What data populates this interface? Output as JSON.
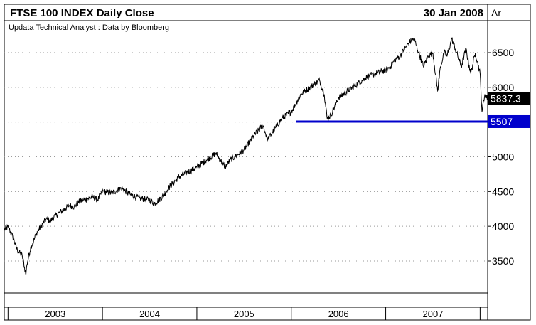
{
  "header": {
    "title": "FTSE 100 INDEX Daily Close",
    "date": "30 Jan 2008",
    "corner_label": "Ar",
    "source": "Updata Technical Analyst : Data by Bloomberg"
  },
  "colors": {
    "line": "#000000",
    "support": "#0000cc",
    "last_tag_bg": "#000000",
    "support_tag_bg": "#0000cc",
    "grid": "#9a9a9a"
  },
  "chart_data": {
    "type": "line",
    "title": "FTSE 100 INDEX Daily Close",
    "xlabel": "",
    "ylabel": "",
    "grid": true,
    "ylim": [
      3000,
      6900
    ],
    "y_ticks": [
      3500,
      4000,
      4500,
      5000,
      5500,
      6000,
      6500
    ],
    "y_tick_labels": [
      "3500",
      "4000",
      "4500",
      "5000",
      "5500",
      "6000",
      "6500"
    ],
    "x_range": [
      2002.96,
      2008.08
    ],
    "x_tick_labels": [
      {
        "label": "2003",
        "start": 2003.0,
        "end": 2004.0
      },
      {
        "label": "2004",
        "start": 2004.0,
        "end": 2005.0
      },
      {
        "label": "2005",
        "start": 2005.0,
        "end": 2006.0
      },
      {
        "label": "2006",
        "start": 2006.0,
        "end": 2007.0
      },
      {
        "label": "2007",
        "start": 2007.0,
        "end": 2008.0
      }
    ],
    "series": [
      {
        "x": [
          2002.96,
          2003.0,
          2003.05,
          2003.1,
          2003.15,
          2003.19,
          2003.2,
          2003.24,
          2003.27,
          2003.3,
          2003.35,
          2003.4,
          2003.45,
          2003.5,
          2003.55,
          2003.6,
          2003.65,
          2003.7,
          2003.75,
          2003.8,
          2003.85,
          2003.9,
          2003.95,
          2004.0,
          2004.1,
          2004.2,
          2004.3,
          2004.4,
          2004.5,
          2004.55,
          2004.6,
          2004.65,
          2004.7,
          2004.8,
          2004.9,
          2005.0,
          2005.1,
          2005.2,
          2005.25,
          2005.3,
          2005.35,
          2005.4,
          2005.5,
          2005.6,
          2005.7,
          2005.75,
          2005.8,
          2005.85,
          2005.9,
          2006.0,
          2006.1,
          2006.2,
          2006.3,
          2006.35,
          2006.38,
          2006.42,
          2006.45,
          2006.5,
          2006.6,
          2006.7,
          2006.8,
          2006.9,
          2007.0,
          2007.05,
          2007.1,
          2007.15,
          2007.2,
          2007.25,
          2007.3,
          2007.35,
          2007.4,
          2007.45,
          2007.5,
          2007.55,
          2007.58,
          2007.62,
          2007.65,
          2007.7,
          2007.75,
          2007.8,
          2007.85,
          2007.9,
          2007.95,
          2008.0,
          2008.02,
          2008.05,
          2008.08
        ],
        "y": [
          3950,
          3990,
          3850,
          3650,
          3580,
          3300,
          3450,
          3700,
          3780,
          3900,
          4000,
          4100,
          4080,
          4150,
          4200,
          4250,
          4300,
          4280,
          4350,
          4380,
          4400,
          4420,
          4380,
          4500,
          4480,
          4550,
          4450,
          4400,
          4380,
          4330,
          4380,
          4450,
          4550,
          4700,
          4780,
          4850,
          4950,
          5050,
          4950,
          4850,
          4950,
          5000,
          5100,
          5300,
          5450,
          5250,
          5350,
          5450,
          5550,
          5650,
          5900,
          6000,
          6100,
          5900,
          5550,
          5600,
          5700,
          5850,
          5950,
          6050,
          6150,
          6200,
          6250,
          6300,
          6400,
          6450,
          6550,
          6650,
          6700,
          6500,
          6300,
          6450,
          6500,
          5950,
          6300,
          6500,
          6450,
          6700,
          6500,
          6300,
          6550,
          6200,
          6500,
          6200,
          5650,
          5900,
          5837.3
        ]
      }
    ],
    "support_line": {
      "value": 5507,
      "x_start": 2006.05,
      "x_end": 2008.08
    },
    "price_tags": [
      {
        "label": "5837.3",
        "value": 5837.3
      },
      {
        "label": "5507",
        "value": 5507
      }
    ]
  }
}
